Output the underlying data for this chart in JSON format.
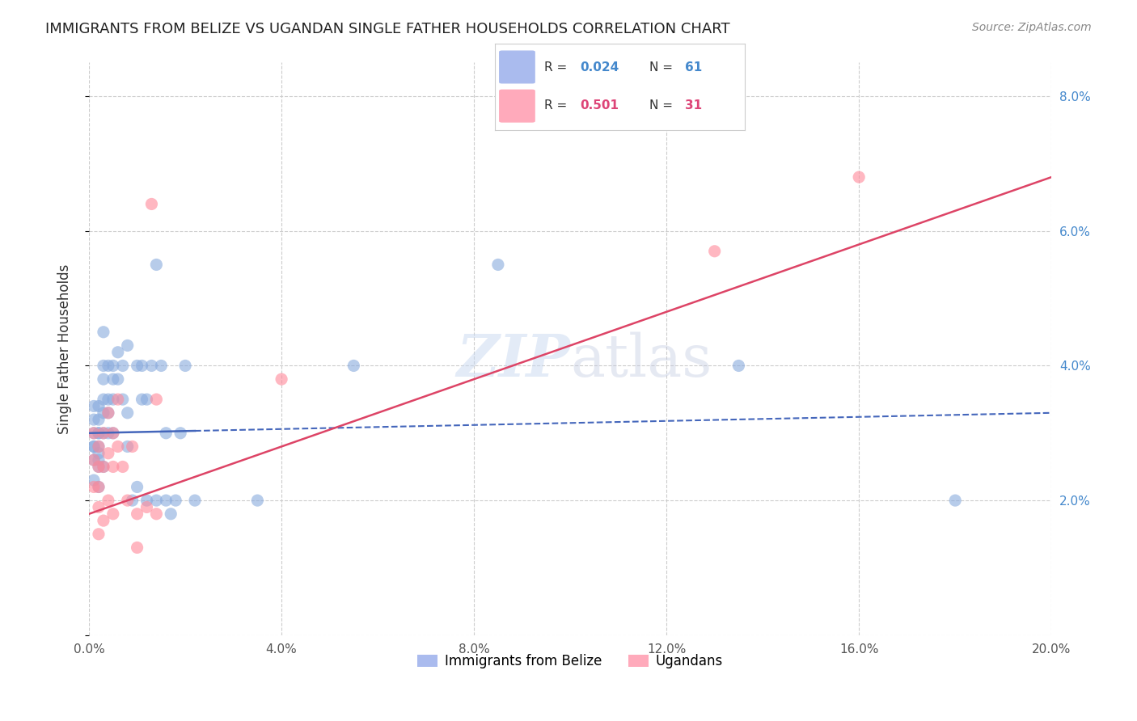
{
  "title": "IMMIGRANTS FROM BELIZE VS UGANDAN SINGLE FATHER HOUSEHOLDS CORRELATION CHART",
  "source": "Source: ZipAtlas.com",
  "xlabel": "",
  "ylabel": "Single Father Households",
  "xlim": [
    0.0,
    0.2
  ],
  "ylim": [
    0.0,
    0.085
  ],
  "xticks": [
    0.0,
    0.04,
    0.08,
    0.12,
    0.16,
    0.2
  ],
  "yticks": [
    0.0,
    0.02,
    0.04,
    0.06,
    0.08
  ],
  "xtick_labels": [
    "0.0%",
    "4.0%",
    "8.0%",
    "12.0%",
    "16.0%",
    "20.0%"
  ],
  "ytick_labels_right": [
    "",
    "2.0%",
    "4.0%",
    "6.0%",
    "8.0%"
  ],
  "background_color": "#ffffff",
  "grid_color": "#cccccc",
  "watermark": "ZIPatlas",
  "legend_r1": "R = 0.024",
  "legend_n1": "N = 61",
  "legend_r2": "R = 0.501",
  "legend_n2": "N = 31",
  "legend_label1": "Immigrants from Belize",
  "legend_label2": "Ugandans",
  "blue_color": "#6699cc",
  "pink_color": "#ff9999",
  "blue_dot_color": "#88aadd",
  "pink_dot_color": "#ff8899",
  "blue_x": [
    0.001,
    0.001,
    0.001,
    0.001,
    0.001,
    0.001,
    0.001,
    0.002,
    0.002,
    0.002,
    0.002,
    0.002,
    0.002,
    0.002,
    0.002,
    0.002,
    0.003,
    0.003,
    0.003,
    0.003,
    0.003,
    0.003,
    0.003,
    0.004,
    0.004,
    0.004,
    0.004,
    0.005,
    0.005,
    0.005,
    0.005,
    0.006,
    0.006,
    0.007,
    0.007,
    0.008,
    0.008,
    0.008,
    0.009,
    0.01,
    0.01,
    0.011,
    0.011,
    0.012,
    0.012,
    0.013,
    0.014,
    0.014,
    0.015,
    0.016,
    0.016,
    0.017,
    0.018,
    0.019,
    0.02,
    0.022,
    0.035,
    0.055,
    0.085,
    0.135,
    0.18
  ],
  "blue_y": [
    0.03,
    0.028,
    0.032,
    0.034,
    0.026,
    0.028,
    0.023,
    0.03,
    0.034,
    0.032,
    0.025,
    0.027,
    0.03,
    0.026,
    0.022,
    0.028,
    0.035,
    0.04,
    0.038,
    0.033,
    0.025,
    0.03,
    0.045,
    0.035,
    0.04,
    0.03,
    0.033,
    0.038,
    0.035,
    0.03,
    0.04,
    0.042,
    0.038,
    0.04,
    0.035,
    0.043,
    0.033,
    0.028,
    0.02,
    0.04,
    0.022,
    0.035,
    0.04,
    0.02,
    0.035,
    0.04,
    0.02,
    0.055,
    0.04,
    0.03,
    0.02,
    0.018,
    0.02,
    0.03,
    0.04,
    0.02,
    0.02,
    0.04,
    0.055,
    0.04,
    0.02
  ],
  "pink_x": [
    0.001,
    0.001,
    0.001,
    0.002,
    0.002,
    0.002,
    0.002,
    0.002,
    0.003,
    0.003,
    0.003,
    0.004,
    0.004,
    0.004,
    0.005,
    0.005,
    0.005,
    0.006,
    0.006,
    0.007,
    0.008,
    0.009,
    0.01,
    0.01,
    0.012,
    0.013,
    0.014,
    0.014,
    0.04,
    0.13,
    0.16
  ],
  "pink_y": [
    0.03,
    0.026,
    0.022,
    0.028,
    0.025,
    0.022,
    0.019,
    0.015,
    0.03,
    0.025,
    0.017,
    0.033,
    0.02,
    0.027,
    0.03,
    0.025,
    0.018,
    0.035,
    0.028,
    0.025,
    0.02,
    0.028,
    0.018,
    0.013,
    0.019,
    0.064,
    0.018,
    0.035,
    0.038,
    0.057,
    0.068
  ],
  "blue_trend_x": [
    0.0,
    0.2
  ],
  "blue_trend_y": [
    0.03,
    0.033
  ],
  "pink_trend_x": [
    0.0,
    0.2
  ],
  "pink_trend_y": [
    0.018,
    0.068
  ]
}
